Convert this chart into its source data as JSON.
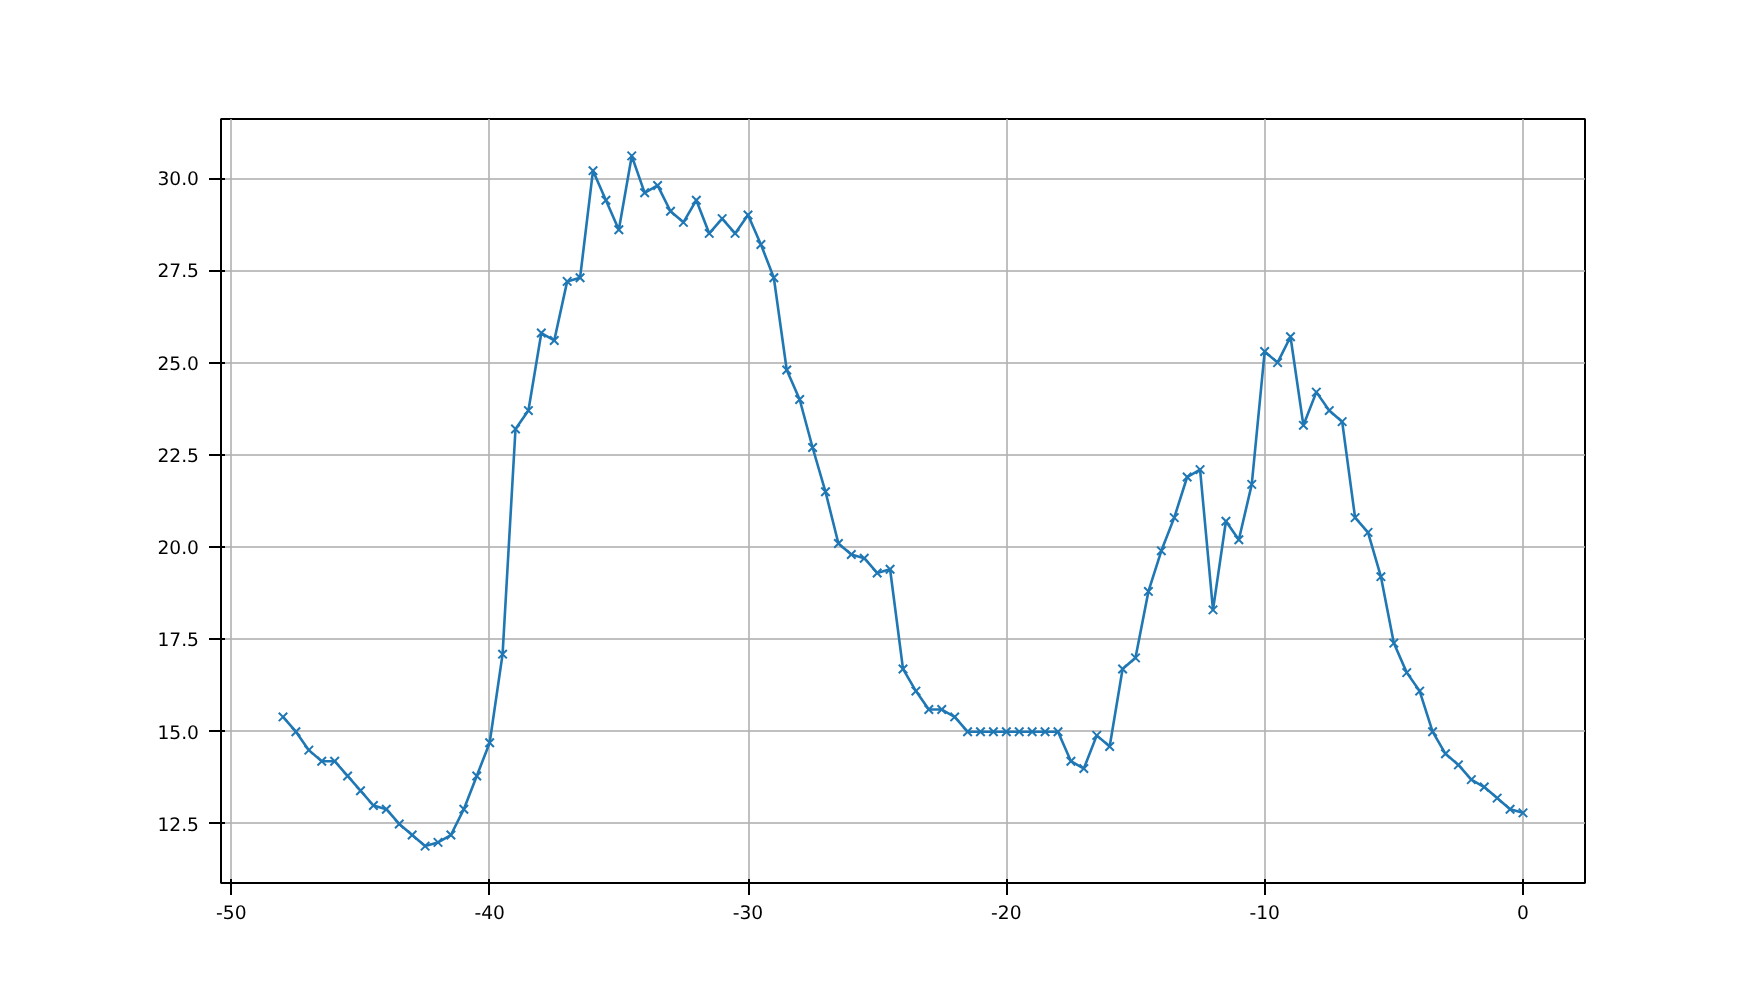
{
  "chart_data": {
    "type": "line",
    "marker": "cross",
    "line_style": "solid",
    "grid": true,
    "x": [
      -48,
      -47.5,
      -47,
      -46.5,
      -46,
      -45.5,
      -45,
      -44.5,
      -44,
      -43.5,
      -43,
      -42.5,
      -42,
      -41.5,
      -41,
      -40.5,
      -40,
      -39.5,
      -39,
      -38.5,
      -38,
      -37.5,
      -37,
      -36.5,
      -36,
      -35.5,
      -35,
      -34.5,
      -34,
      -33.5,
      -33,
      -32.5,
      -32,
      -31.5,
      -31,
      -30.5,
      -30,
      -29.5,
      -29,
      -28.5,
      -28,
      -27.5,
      -27,
      -26.5,
      -26,
      -25.5,
      -25,
      -24.5,
      -24,
      -23.5,
      -23,
      -22.5,
      -22,
      -21.5,
      -21,
      -20.5,
      -20,
      -19.5,
      -19,
      -18.5,
      -18,
      -17.5,
      -17,
      -16.5,
      -16,
      -15.5,
      -15,
      -14.5,
      -14,
      -13.5,
      -13,
      -12.5,
      -12,
      -11.5,
      -11,
      -10.5,
      -10,
      -9.5,
      -9,
      -8.5,
      -8,
      -7.5,
      -7,
      -6.5,
      -6,
      -5.5,
      -5,
      -4.5,
      -4,
      -3.5,
      -3,
      -2.5,
      -2,
      -1.5,
      -1,
      -0.5,
      0
    ],
    "series": [
      {
        "color": "#1f77b4",
        "values": [
          15.4,
          15.0,
          14.5,
          14.2,
          14.2,
          13.8,
          13.4,
          13.0,
          12.9,
          12.5,
          12.2,
          11.9,
          12.0,
          12.2,
          12.9,
          13.8,
          14.7,
          17.1,
          23.2,
          23.7,
          25.8,
          25.6,
          27.2,
          27.3,
          30.2,
          29.4,
          28.6,
          30.6,
          29.6,
          29.8,
          29.1,
          28.8,
          29.4,
          28.5,
          28.9,
          28.5,
          29.0,
          28.2,
          27.3,
          24.8,
          24.0,
          22.7,
          21.5,
          20.1,
          19.8,
          19.7,
          19.3,
          19.4,
          16.7,
          16.1,
          15.6,
          15.6,
          15.4,
          15.0,
          15.0,
          15.0,
          15.0,
          15.0,
          15.0,
          15.0,
          15.0,
          14.2,
          14.0,
          14.9,
          14.6,
          16.7,
          17.0,
          18.8,
          19.9,
          20.8,
          21.9,
          22.1,
          18.3,
          20.7,
          20.2,
          21.7,
          25.3,
          25.0,
          25.7,
          23.3,
          24.2,
          23.7,
          23.4,
          20.8,
          20.4,
          19.2,
          17.4,
          16.6,
          16.1,
          15.0,
          14.4,
          14.1,
          13.7,
          13.5,
          13.2,
          12.9,
          12.8
        ]
      }
    ],
    "xlim": [
      -50.4,
      2.4
    ],
    "ylim": [
      10.9,
      31.6
    ],
    "xticks": [
      -50,
      -40,
      -30,
      -20,
      -10,
      0
    ],
    "yticks": [
      {
        "value": 12.5,
        "label": "12.5"
      },
      {
        "value": 15,
        "label": "15.0"
      },
      {
        "value": 17.5,
        "label": "17.5"
      },
      {
        "value": 20,
        "label": "20.0"
      },
      {
        "value": 22.5,
        "label": "22.5"
      },
      {
        "value": 25,
        "label": "25.0"
      },
      {
        "value": 27.5,
        "label": "27.5"
      },
      {
        "value": 30,
        "label": "30.0"
      }
    ]
  }
}
